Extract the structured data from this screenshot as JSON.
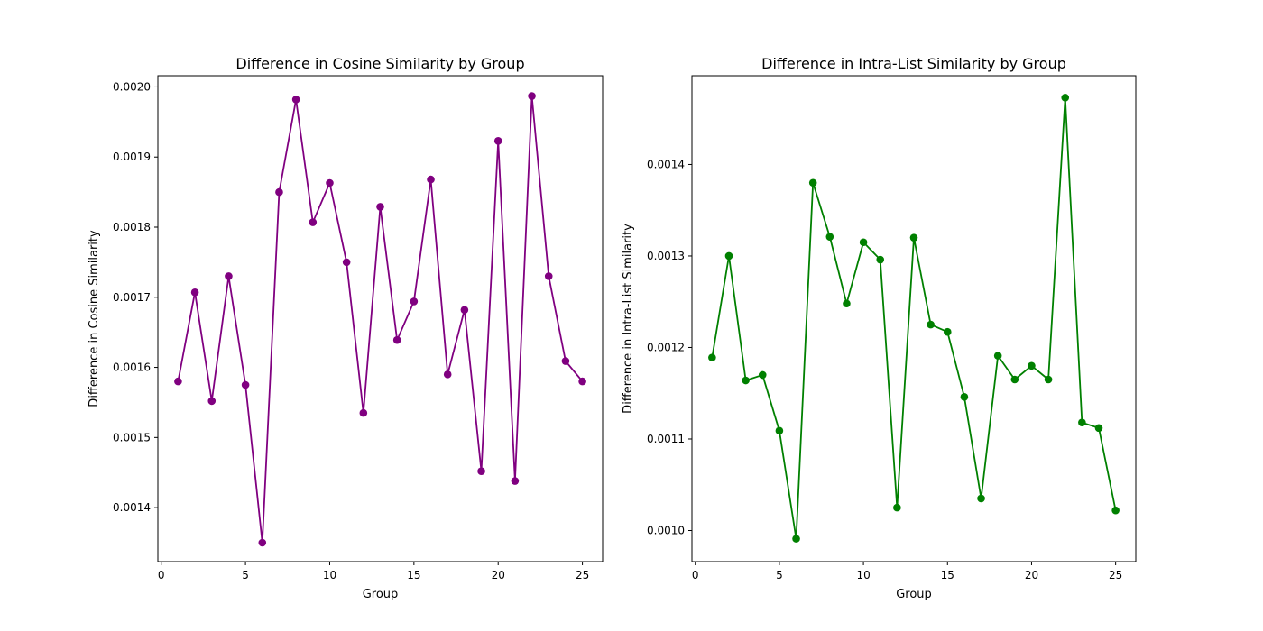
{
  "chart_data": [
    {
      "type": "line",
      "title": "Difference in Cosine Similarity by Group",
      "xlabel": "Group",
      "ylabel": "Difference in Cosine Similarity",
      "color": "#800080",
      "marker": "circle",
      "grid": false,
      "xlim": [
        -0.2,
        26.2
      ],
      "ylim": [
        0.001323,
        0.002016
      ],
      "x_ticks": [
        0,
        5,
        10,
        15,
        20,
        25
      ],
      "x_tick_labels": [
        "0",
        "5",
        "10",
        "15",
        "20",
        "25"
      ],
      "y_ticks": [
        0.0014,
        0.0015,
        0.0016,
        0.0017,
        0.0018,
        0.0019,
        0.002
      ],
      "y_tick_labels": [
        "0.0014",
        "0.0015",
        "0.0016",
        "0.0017",
        "0.0018",
        "0.0019",
        "0.0020"
      ],
      "x": [
        1,
        2,
        3,
        4,
        5,
        6,
        7,
        8,
        9,
        10,
        11,
        12,
        13,
        14,
        15,
        16,
        17,
        18,
        19,
        20,
        21,
        22,
        23,
        24,
        25
      ],
      "y": [
        0.00158,
        0.001707,
        0.001552,
        0.00173,
        0.001575,
        0.00135,
        0.00185,
        0.001982,
        0.001807,
        0.001863,
        0.00175,
        0.001535,
        0.001829,
        0.001639,
        0.001694,
        0.001868,
        0.00159,
        0.001682,
        0.001452,
        0.001923,
        0.001438,
        0.001987,
        0.00173,
        0.001609,
        0.00158
      ]
    },
    {
      "type": "line",
      "title": "Difference in Intra-List Similarity by Group",
      "xlabel": "Group",
      "ylabel": "Difference in Intra-List Similarity",
      "color": "#008000",
      "marker": "circle",
      "grid": false,
      "xlim": [
        -0.2,
        26.2
      ],
      "ylim": [
        0.000966,
        0.001497
      ],
      "x_ticks": [
        0,
        5,
        10,
        15,
        20,
        25
      ],
      "x_tick_labels": [
        "0",
        "5",
        "10",
        "15",
        "20",
        "25"
      ],
      "y_ticks": [
        0.001,
        0.0011,
        0.0012,
        0.0013,
        0.0014
      ],
      "y_tick_labels": [
        "0.0010",
        "0.0011",
        "0.0012",
        "0.0013",
        "0.0014"
      ],
      "x": [
        1,
        2,
        3,
        4,
        5,
        6,
        7,
        8,
        9,
        10,
        11,
        12,
        13,
        14,
        15,
        16,
        17,
        18,
        19,
        20,
        21,
        22,
        23,
        24,
        25
      ],
      "y": [
        0.001189,
        0.0013,
        0.001164,
        0.00117,
        0.001109,
        0.000991,
        0.00138,
        0.001321,
        0.001248,
        0.001315,
        0.001296,
        0.001025,
        0.00132,
        0.001225,
        0.001217,
        0.001146,
        0.001035,
        0.001191,
        0.001165,
        0.00118,
        0.001165,
        0.001473,
        0.001118,
        0.001112,
        0.001022
      ]
    }
  ]
}
